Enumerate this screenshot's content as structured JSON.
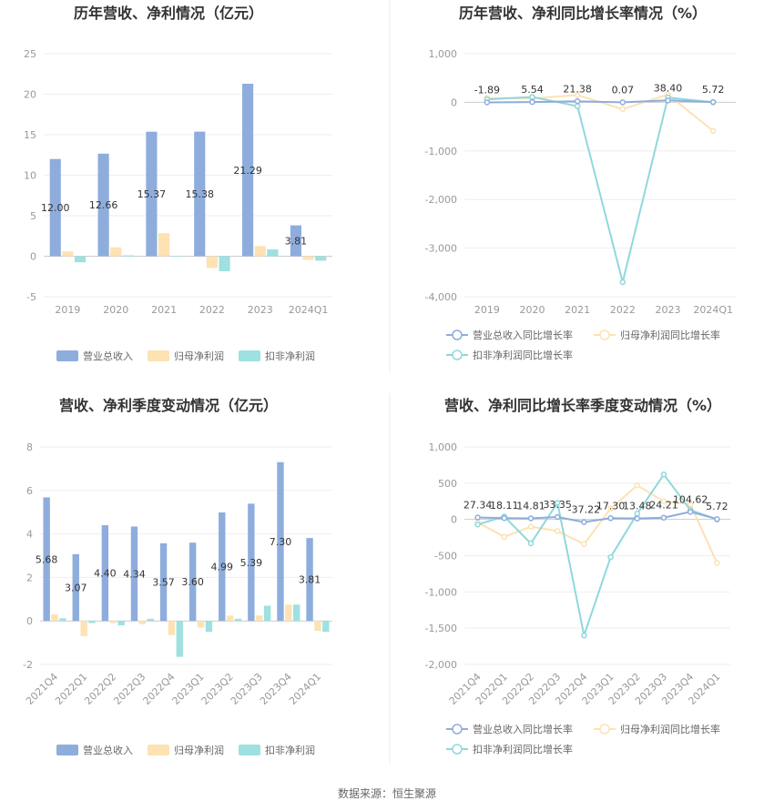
{
  "source": "数据来源：恒生聚源",
  "colors": {
    "revenue": "#8eaddc",
    "net_profit": "#fde2b3",
    "deducted_profit": "#9fe0e0",
    "revenue_line": "#8eaddc",
    "net_line": "#fde2b3",
    "deducted_line": "#8fd8dc"
  },
  "chart_data": [
    {
      "type": "bar",
      "title": "历年营收、净利情况（亿元）",
      "categories": [
        "2019",
        "2020",
        "2021",
        "2022",
        "2023",
        "2024Q1"
      ],
      "ylim": [
        -5,
        25
      ],
      "yticks": [
        "-5",
        "0",
        "5",
        "10",
        "15",
        "20",
        "25"
      ],
      "series": [
        {
          "name": "营业总收入",
          "values": [
            12.0,
            12.66,
            15.37,
            15.38,
            21.29,
            3.81
          ],
          "labels": [
            "12.00",
            "12.66",
            "15.37",
            "15.38",
            "21.29",
            "3.81"
          ]
        },
        {
          "name": "归母净利润",
          "values": [
            0.6,
            1.1,
            2.85,
            -1.45,
            1.25,
            -0.45
          ]
        },
        {
          "name": "扣非净利润",
          "values": [
            -0.75,
            0.1,
            0.05,
            -1.85,
            0.85,
            -0.55
          ]
        }
      ],
      "legend": "bottom"
    },
    {
      "type": "line",
      "title": "历年营收、净利同比增长率情况（%）",
      "categories": [
        "2019",
        "2020",
        "2021",
        "2022",
        "2023",
        "2024Q1"
      ],
      "ylim": [
        -4000,
        1000
      ],
      "yticks": [
        "-4,000",
        "-3,000",
        "-2,000",
        "-1,000",
        "0",
        "1,000"
      ],
      "series": [
        {
          "name": "营业总收入同比增长率",
          "values": [
            -1.89,
            5.54,
            21.38,
            0.07,
            38.4,
            5.72
          ],
          "labels": [
            "-1.89",
            "5.54",
            "21.38",
            "0.07",
            "38.40",
            "5.72"
          ]
        },
        {
          "name": "归母净利润同比增长率",
          "values": [
            90,
            80,
            150,
            -140,
            160,
            -590
          ]
        },
        {
          "name": "扣非净利润同比增长率",
          "values": [
            60,
            110,
            -80,
            -3700,
            100,
            0
          ]
        }
      ],
      "legend": "bottom"
    },
    {
      "type": "bar",
      "title": "营收、净利季度变动情况（亿元）",
      "categories": [
        "2021Q4",
        "2022Q1",
        "2022Q2",
        "2022Q3",
        "2022Q4",
        "2023Q1",
        "2023Q2",
        "2023Q3",
        "2023Q4",
        "2024Q1"
      ],
      "ylim": [
        -2,
        8
      ],
      "yticks": [
        "-2",
        "0",
        "2",
        "4",
        "6",
        "8"
      ],
      "series": [
        {
          "name": "营业总收入",
          "values": [
            5.68,
            3.07,
            4.4,
            4.34,
            3.57,
            3.6,
            4.99,
            5.39,
            7.3,
            3.81
          ],
          "labels": [
            "5.68",
            "3.07",
            "4.40",
            "4.34",
            "3.57",
            "3.60",
            "4.99",
            "5.39",
            "7.30",
            "3.81"
          ]
        },
        {
          "name": "归母净利润",
          "values": [
            0.3,
            -0.7,
            -0.1,
            -0.15,
            -0.65,
            -0.3,
            0.25,
            0.25,
            0.75,
            -0.45
          ]
        },
        {
          "name": "扣非净利润",
          "values": [
            0.12,
            -0.1,
            -0.2,
            0.1,
            -1.65,
            -0.5,
            0.1,
            0.7,
            0.75,
            -0.5
          ]
        }
      ],
      "legend": "bottom"
    },
    {
      "type": "line",
      "title": "营收、净利同比增长率季度变动情况（%）",
      "categories": [
        "2021Q4",
        "2022Q1",
        "2022Q2",
        "2022Q3",
        "2022Q4",
        "2023Q1",
        "2023Q2",
        "2023Q3",
        "2023Q4",
        "2024Q1"
      ],
      "ylim": [
        -2000,
        1000
      ],
      "yticks": [
        "-2,000",
        "-1,500",
        "-1,000",
        "-500",
        "0",
        "500",
        "1,000"
      ],
      "series": [
        {
          "name": "营业总收入同比增长率",
          "values": [
            27.34,
            18.11,
            14.81,
            33.35,
            -37.22,
            17.3,
            13.48,
            24.21,
            104.62,
            5.72
          ],
          "labels": [
            "27.34",
            "18.11",
            "14.81",
            "33.35",
            "-37.22",
            "17.30",
            "13.48",
            "24.21",
            "104.62",
            "5.72"
          ]
        },
        {
          "name": "归母净利润同比增长率",
          "values": [
            -40,
            -240,
            -100,
            -160,
            -340,
            150,
            470,
            250,
            210,
            -600
          ]
        },
        {
          "name": "扣非净利润同比增长率",
          "values": [
            -70,
            40,
            -330,
            230,
            -1600,
            -520,
            80,
            620,
            130,
            0
          ]
        }
      ],
      "legend": "bottom"
    }
  ]
}
